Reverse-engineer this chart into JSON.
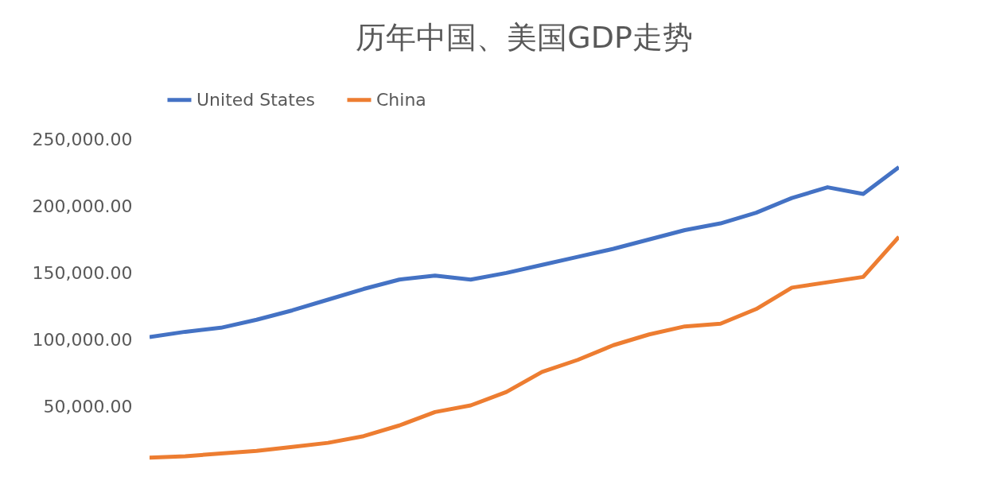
{
  "chart_data": {
    "type": "line",
    "title": "历年中国、美国GDP走势",
    "categories": [
      null,
      null,
      null,
      null,
      null,
      null,
      null,
      null,
      null,
      null,
      null,
      null,
      null,
      null,
      null,
      null,
      null,
      null,
      null,
      null,
      null,
      null
    ],
    "series": [
      {
        "name": "United States",
        "color": "#4472c4",
        "values": [
          102000,
          106000,
          109000,
          115000,
          122000,
          130000,
          138000,
          145000,
          148000,
          145000,
          150000,
          156000,
          162000,
          168000,
          175000,
          182000,
          187000,
          195000,
          206000,
          214000,
          209000,
          229000
        ]
      },
      {
        "name": "China",
        "color": "#ed7d31",
        "values": [
          12000,
          13000,
          15000,
          17000,
          20000,
          23000,
          28000,
          36000,
          46000,
          51000,
          61000,
          76000,
          85000,
          96000,
          104000,
          110000,
          112000,
          123000,
          139000,
          143000,
          147000,
          177000
        ]
      }
    ],
    "ylim": [
      10000,
      250000
    ],
    "yticks": [
      {
        "value": 50000,
        "label": "50,000.00"
      },
      {
        "value": 100000,
        "label": "100,000.00"
      },
      {
        "value": 150000,
        "label": "150,000.00"
      },
      {
        "value": 200000,
        "label": "200,000.00"
      },
      {
        "value": 250000,
        "label": "250,000.00"
      }
    ],
    "tick_labels": "y",
    "grid": false,
    "legend": "top",
    "marker": "none",
    "line_style": "solid"
  }
}
